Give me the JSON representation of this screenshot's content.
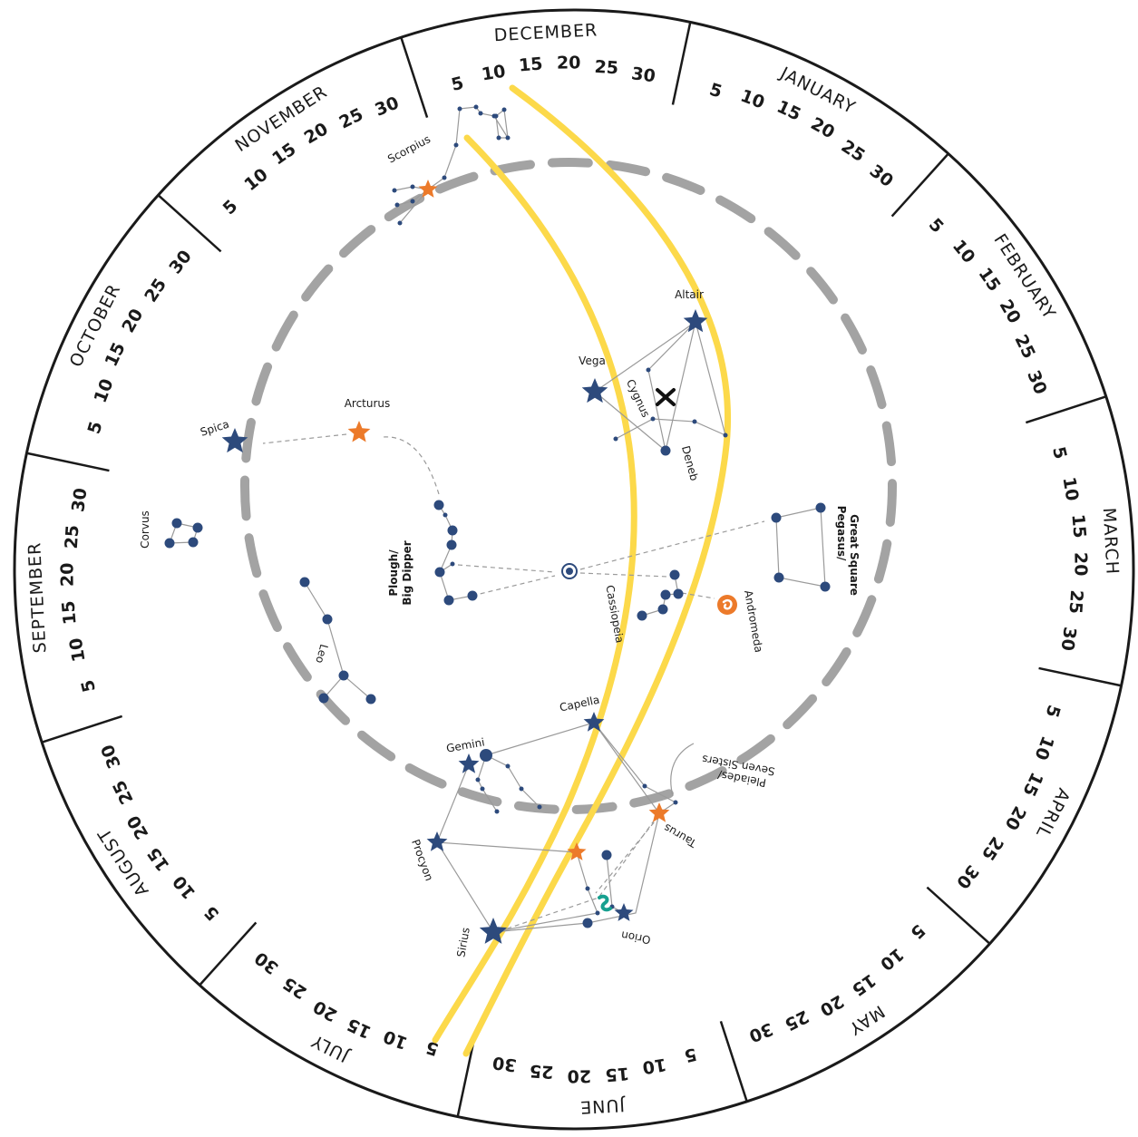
{
  "months": [
    "DECEMBER",
    "JANUARY",
    "FEBRUARY",
    "MARCH",
    "APRIL",
    "MAY",
    "JUNE",
    "JULY",
    "AUGUST",
    "SEPTEMBER",
    "OCTOBER",
    "NOVEMBER"
  ],
  "day_ticks": [
    "5",
    "10",
    "15",
    "20",
    "25",
    "30"
  ],
  "labels": {
    "scorpius": "Scorpius",
    "altair": "Altair",
    "vega": "Vega",
    "cygnus": "Cygnus",
    "deneb": "Deneb",
    "spica": "Spica",
    "arcturus": "Arcturus",
    "corvus": "Corvus",
    "plough_1": "Plough/",
    "plough_2": "Big Dipper",
    "cassiopeia": "Cassiopeia",
    "andromeda": "Andromeda",
    "pegasus_1": "Pegasus/",
    "pegasus_2": "Great Square",
    "leo": "Leo",
    "capella": "Capella",
    "gemini": "Gemini",
    "pleiades_1": "Pleiades/",
    "pleiades_2": "Seven Sisters",
    "taurus": "Taurus",
    "procyon": "Procyon",
    "sirius": "Sirius",
    "orion": "Orion"
  },
  "colors": {
    "navy": "#2d4a7c",
    "orange": "#ec7a2a",
    "milky_way": "#fcd94a",
    "dash_ring": "#a3a3a3",
    "teal": "#17a08f"
  }
}
